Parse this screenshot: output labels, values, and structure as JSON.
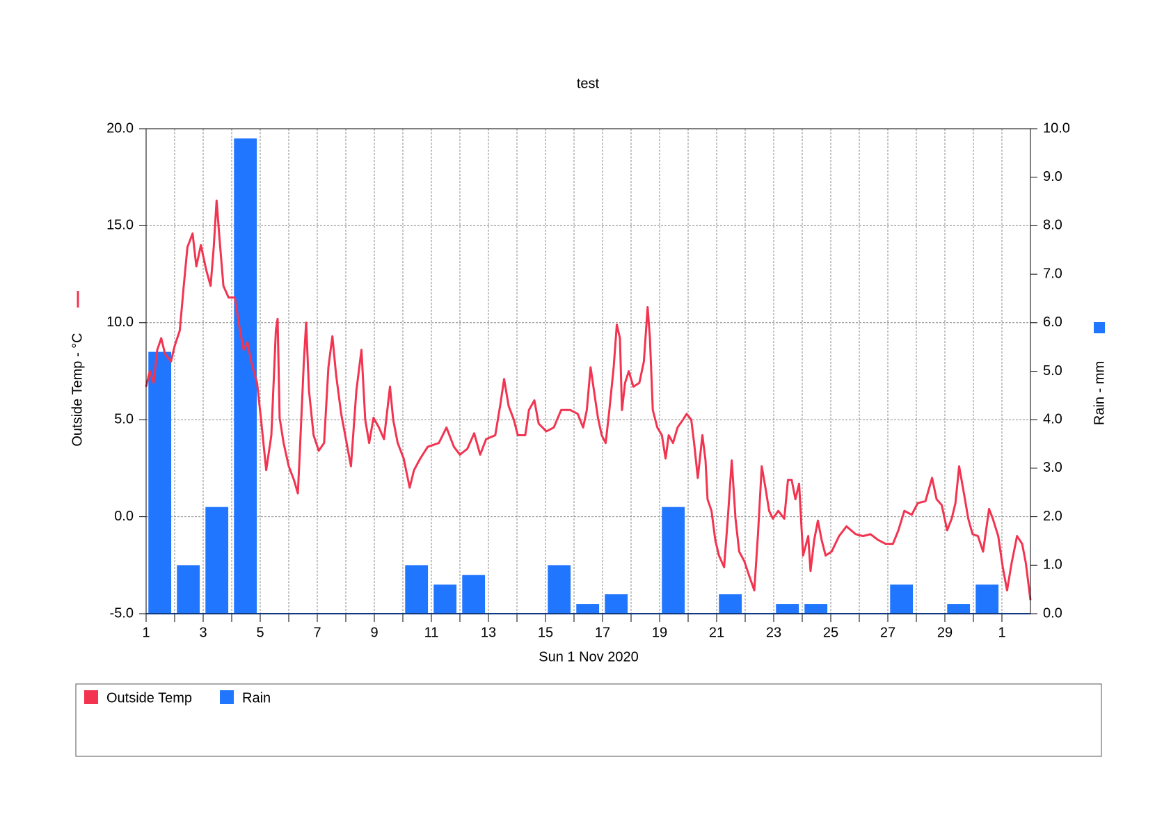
{
  "chart_data": {
    "type": "line",
    "title": "test",
    "xlabel": "Sun 1 Nov 2020",
    "ylabel": "Outside Temp - °C",
    "y2label": "Rain - mm",
    "xlim": [
      1,
      32
    ],
    "xticks": [
      1,
      3,
      5,
      7,
      9,
      11,
      13,
      15,
      17,
      19,
      21,
      23,
      25,
      27,
      29,
      {
        "value": 31,
        "label": "1"
      }
    ],
    "xminorticks": [
      2,
      4,
      6,
      8,
      10,
      12,
      14,
      16,
      18,
      20,
      22,
      24,
      26,
      28,
      30
    ],
    "ylim": [
      -5,
      20
    ],
    "yticks": [
      {
        "value": -5,
        "label": "-5.0"
      },
      {
        "value": 0,
        "label": "0.0"
      },
      {
        "value": 5,
        "label": "5.0"
      },
      {
        "value": 10,
        "label": "10.0"
      },
      {
        "value": 15,
        "label": "15.0"
      },
      {
        "value": 20,
        "label": "20.0"
      }
    ],
    "y2lim": [
      0,
      10
    ],
    "y2ticks": [
      {
        "value": 0,
        "label": "0.0"
      },
      {
        "value": 1,
        "label": "1.0"
      },
      {
        "value": 2,
        "label": "2.0"
      },
      {
        "value": 3,
        "label": "3.0"
      },
      {
        "value": 4,
        "label": "4.0"
      },
      {
        "value": 5,
        "label": "5.0"
      },
      {
        "value": 6,
        "label": "6.0"
      },
      {
        "value": 7,
        "label": "7.0"
      },
      {
        "value": 8,
        "label": "8.0"
      },
      {
        "value": 9,
        "label": "9.0"
      },
      {
        "value": 10,
        "label": "10.0"
      }
    ],
    "grid": true,
    "legend": "bottom",
    "series": [
      {
        "name": "Outside Temp",
        "type": "line",
        "color": "#f23450",
        "x": [
          1.0,
          1.13,
          1.26,
          1.39,
          1.53,
          1.66,
          1.87,
          2.0,
          2.18,
          2.32,
          2.45,
          2.63,
          2.76,
          2.92,
          3.11,
          3.26,
          3.37,
          3.47,
          3.58,
          3.71,
          3.89,
          4.11,
          4.29,
          4.42,
          4.55,
          4.68,
          4.89,
          5.03,
          5.21,
          5.39,
          5.55,
          5.61,
          5.68,
          5.82,
          6.0,
          6.18,
          6.32,
          6.39,
          6.53,
          6.61,
          6.71,
          6.87,
          7.05,
          7.24,
          7.39,
          7.53,
          7.66,
          7.84,
          8.03,
          8.18,
          8.37,
          8.55,
          8.68,
          8.82,
          8.97,
          9.16,
          9.34,
          9.55,
          9.66,
          9.82,
          10.03,
          10.24,
          10.39,
          10.61,
          10.87,
          11.26,
          11.53,
          11.79,
          12.0,
          12.26,
          12.5,
          12.71,
          12.92,
          13.24,
          13.42,
          13.55,
          13.71,
          13.89,
          14.03,
          14.29,
          14.42,
          14.61,
          14.76,
          15.03,
          15.29,
          15.55,
          15.87,
          16.13,
          16.32,
          16.45,
          16.58,
          16.74,
          16.84,
          16.97,
          17.11,
          17.24,
          17.39,
          17.5,
          17.61,
          17.68,
          17.79,
          17.92,
          18.08,
          18.29,
          18.45,
          18.58,
          18.66,
          18.76,
          18.92,
          19.08,
          19.21,
          19.32,
          19.47,
          19.63,
          19.82,
          19.95,
          20.11,
          20.21,
          20.34,
          20.5,
          20.61,
          20.68,
          20.82,
          20.95,
          21.08,
          21.26,
          21.39,
          21.53,
          21.66,
          21.79,
          21.97,
          22.13,
          22.32,
          22.45,
          22.58,
          22.71,
          22.84,
          22.97,
          23.16,
          23.37,
          23.5,
          23.63,
          23.76,
          23.89,
          24.03,
          24.21,
          24.29,
          24.42,
          24.55,
          24.68,
          24.82,
          25.03,
          25.29,
          25.55,
          25.87,
          26.13,
          26.39,
          26.66,
          26.92,
          27.18,
          27.37,
          27.58,
          27.84,
          28.05,
          28.32,
          28.55,
          28.71,
          28.89,
          29.08,
          29.24,
          29.37,
          29.5,
          29.68,
          29.82,
          29.97,
          30.16,
          30.34,
          30.55,
          30.68,
          30.87,
          31.03,
          31.18,
          31.34,
          31.53,
          31.71,
          31.84,
          32.0
        ],
        "values": [
          6.7,
          7.5,
          6.9,
          8.6,
          9.2,
          8.4,
          8.0,
          8.8,
          9.6,
          11.9,
          13.9,
          14.6,
          12.9,
          14.0,
          12.7,
          11.9,
          13.9,
          16.3,
          14.2,
          11.9,
          11.3,
          11.3,
          9.6,
          8.6,
          9.0,
          8.0,
          6.9,
          5.0,
          2.4,
          4.2,
          9.6,
          10.2,
          5.1,
          3.8,
          2.6,
          1.9,
          1.2,
          3.4,
          8.0,
          10.0,
          6.5,
          4.2,
          3.4,
          3.8,
          7.7,
          9.3,
          7.3,
          5.3,
          3.8,
          2.6,
          6.5,
          8.6,
          5.0,
          3.8,
          5.1,
          4.6,
          4.0,
          6.7,
          5.0,
          3.8,
          3.0,
          1.5,
          2.4,
          3.0,
          3.6,
          3.8,
          4.6,
          3.6,
          3.2,
          3.5,
          4.3,
          3.2,
          4.0,
          4.2,
          5.8,
          7.1,
          5.7,
          5.0,
          4.2,
          4.2,
          5.5,
          6.0,
          4.8,
          4.4,
          4.6,
          5.5,
          5.5,
          5.3,
          4.6,
          5.5,
          7.7,
          6.1,
          5.1,
          4.2,
          3.8,
          5.5,
          7.7,
          9.9,
          9.2,
          5.5,
          6.9,
          7.5,
          6.7,
          6.9,
          8.0,
          10.8,
          9.2,
          5.5,
          4.6,
          4.2,
          3.0,
          4.2,
          3.8,
          4.6,
          5.0,
          5.3,
          5.0,
          3.8,
          2.0,
          4.2,
          2.9,
          0.9,
          0.3,
          -1.2,
          -2.0,
          -2.6,
          -0.1,
          2.9,
          -0.1,
          -1.8,
          -2.3,
          -3.0,
          -3.8,
          -0.9,
          2.6,
          1.5,
          0.3,
          -0.1,
          0.3,
          -0.1,
          1.9,
          1.9,
          0.9,
          1.7,
          -2.0,
          -1.0,
          -2.8,
          -1.2,
          -0.2,
          -1.2,
          -2.0,
          -1.8,
          -1.0,
          -0.5,
          -0.9,
          -1.0,
          -0.9,
          -1.2,
          -1.4,
          -1.4,
          -0.7,
          0.3,
          0.1,
          0.7,
          0.8,
          2.0,
          0.9,
          0.6,
          -0.7,
          -0.1,
          0.7,
          2.6,
          1.1,
          -0.1,
          -0.9,
          -1.0,
          -1.8,
          0.4,
          -0.1,
          -1.0,
          -2.6,
          -3.8,
          -2.4,
          -1.0,
          -1.4,
          -2.4,
          -4.3
        ]
      },
      {
        "name": "Rain",
        "type": "bar",
        "axis": "y2",
        "color": "#2176ff",
        "x": [
          1,
          2,
          3,
          4,
          5,
          6,
          7,
          8,
          9,
          10,
          11,
          12,
          13,
          14,
          15,
          16,
          17,
          18,
          19,
          20,
          21,
          22,
          23,
          24,
          25,
          26,
          27,
          28,
          29,
          30
        ],
        "values": [
          5.4,
          1.0,
          2.2,
          9.8,
          0,
          0,
          0,
          0,
          0,
          1.0,
          0.6,
          0.8,
          0,
          0,
          1.0,
          0.2,
          0.4,
          0,
          2.2,
          0,
          0.4,
          0,
          0.2,
          0.2,
          0,
          0,
          0.6,
          0,
          0.2,
          0.6
        ]
      }
    ]
  }
}
